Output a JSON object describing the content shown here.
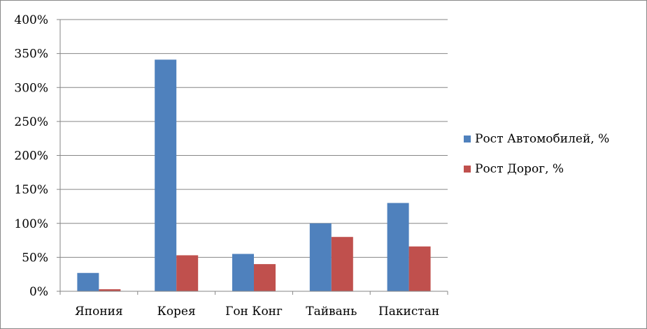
{
  "chart_data": {
    "type": "bar",
    "categories": [
      "Япония",
      "Корея",
      "Гон Конг",
      "Тайвань",
      "Пакистан"
    ],
    "series": [
      {
        "name": "Рост Автомобилей, %",
        "values": [
          27,
          341,
          55,
          100,
          130
        ],
        "color": "#4f81bd"
      },
      {
        "name": "Рост Дорог, %",
        "values": [
          3,
          53,
          40,
          80,
          66
        ],
        "color": "#c0504d"
      }
    ],
    "ylim": [
      0,
      400
    ],
    "yticks": [
      0,
      50,
      100,
      150,
      200,
      250,
      300,
      350,
      400
    ],
    "ytick_labels": [
      "0%",
      "50%",
      "100%",
      "150%",
      "200%",
      "250%",
      "300%",
      "350%",
      "400%"
    ],
    "grid": true,
    "legend_position": "right",
    "title": "",
    "xlabel": "",
    "ylabel": ""
  }
}
